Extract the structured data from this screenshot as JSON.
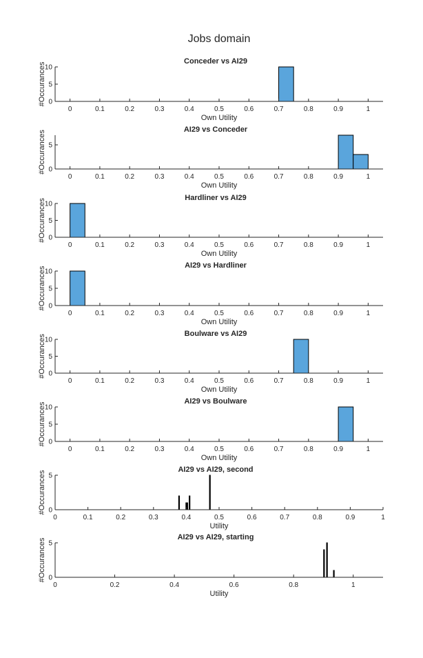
{
  "figure_title": "Jobs domain",
  "chart_data": [
    {
      "type": "bar",
      "title": "Conceder vs AI29",
      "xlabel": "Own Utility",
      "ylabel": "#Occurances",
      "xlim": [
        -0.05,
        1.05
      ],
      "ylim": [
        0,
        10
      ],
      "xticks": [
        0,
        0.1,
        0.2,
        0.3,
        0.4,
        0.5,
        0.6,
        0.7,
        0.8,
        0.9,
        1
      ],
      "xtick_labels": [
        "0",
        "0.1",
        "0.2",
        "0.3",
        "0.4",
        "0.5",
        "0.6",
        "0.7",
        "0.8",
        "0.9",
        "1"
      ],
      "yticks": [
        0,
        5,
        10
      ],
      "ytick_labels": [
        "0",
        "5",
        "10"
      ],
      "bar_style": "histogram",
      "bars": [
        {
          "start": 0.7,
          "end": 0.75,
          "count": 10
        }
      ]
    },
    {
      "type": "bar",
      "title": "AI29 vs Conceder",
      "xlabel": "Own Utility",
      "ylabel": "#Occurances",
      "xlim": [
        -0.05,
        1.05
      ],
      "ylim": [
        0,
        7
      ],
      "xticks": [
        0,
        0.1,
        0.2,
        0.3,
        0.4,
        0.5,
        0.6,
        0.7,
        0.8,
        0.9,
        1
      ],
      "xtick_labels": [
        "0",
        "0.1",
        "0.2",
        "0.3",
        "0.4",
        "0.5",
        "0.6",
        "0.7",
        "0.8",
        "0.9",
        "1"
      ],
      "yticks": [
        0,
        5
      ],
      "ytick_labels": [
        "0",
        "5"
      ],
      "bar_style": "histogram",
      "bars": [
        {
          "start": 0.9,
          "end": 0.95,
          "count": 7
        },
        {
          "start": 0.95,
          "end": 1.0,
          "count": 3
        }
      ]
    },
    {
      "type": "bar",
      "title": "Hardliner vs AI29",
      "xlabel": "Own Utility",
      "ylabel": "#Occurances",
      "xlim": [
        -0.05,
        1.05
      ],
      "ylim": [
        0,
        10
      ],
      "xticks": [
        0,
        0.1,
        0.2,
        0.3,
        0.4,
        0.5,
        0.6,
        0.7,
        0.8,
        0.9,
        1
      ],
      "xtick_labels": [
        "0",
        "0.1",
        "0.2",
        "0.3",
        "0.4",
        "0.5",
        "0.6",
        "0.7",
        "0.8",
        "0.9",
        "1"
      ],
      "yticks": [
        0,
        5,
        10
      ],
      "ytick_labels": [
        "0",
        "5",
        "10"
      ],
      "bar_style": "histogram",
      "bars": [
        {
          "start": 0.0,
          "end": 0.05,
          "count": 10
        }
      ]
    },
    {
      "type": "bar",
      "title": "AI29 vs Hardliner",
      "xlabel": "Own Utility",
      "ylabel": "#Occurances",
      "xlim": [
        -0.05,
        1.05
      ],
      "ylim": [
        0,
        10
      ],
      "xticks": [
        0,
        0.1,
        0.2,
        0.3,
        0.4,
        0.5,
        0.6,
        0.7,
        0.8,
        0.9,
        1
      ],
      "xtick_labels": [
        "0",
        "0.1",
        "0.2",
        "0.3",
        "0.4",
        "0.5",
        "0.6",
        "0.7",
        "0.8",
        "0.9",
        "1"
      ],
      "yticks": [
        0,
        5,
        10
      ],
      "ytick_labels": [
        "0",
        "5",
        "10"
      ],
      "bar_style": "histogram",
      "bars": [
        {
          "start": 0.0,
          "end": 0.05,
          "count": 10
        }
      ]
    },
    {
      "type": "bar",
      "title": "Boulware vs AI29",
      "xlabel": "Own Utility",
      "ylabel": "#Occurances",
      "xlim": [
        -0.05,
        1.05
      ],
      "ylim": [
        0,
        10
      ],
      "xticks": [
        0,
        0.1,
        0.2,
        0.3,
        0.4,
        0.5,
        0.6,
        0.7,
        0.8,
        0.9,
        1
      ],
      "xtick_labels": [
        "0",
        "0.1",
        "0.2",
        "0.3",
        "0.4",
        "0.5",
        "0.6",
        "0.7",
        "0.8",
        "0.9",
        "1"
      ],
      "yticks": [
        0,
        5,
        10
      ],
      "ytick_labels": [
        "0",
        "5",
        "10"
      ],
      "bar_style": "histogram",
      "bars": [
        {
          "start": 0.75,
          "end": 0.8,
          "count": 10
        }
      ]
    },
    {
      "type": "bar",
      "title": "AI29 vs Boulware",
      "xlabel": "Own Utility",
      "ylabel": "#Occurances",
      "xlim": [
        -0.05,
        1.05
      ],
      "ylim": [
        0,
        10
      ],
      "xticks": [
        0,
        0.1,
        0.2,
        0.3,
        0.4,
        0.5,
        0.6,
        0.7,
        0.8,
        0.9,
        1
      ],
      "xtick_labels": [
        "0",
        "0.1",
        "0.2",
        "0.3",
        "0.4",
        "0.5",
        "0.6",
        "0.7",
        "0.8",
        "0.9",
        "1"
      ],
      "yticks": [
        0,
        5,
        10
      ],
      "ytick_labels": [
        "0",
        "5",
        "10"
      ],
      "bar_style": "histogram",
      "bars": [
        {
          "start": 0.9,
          "end": 0.95,
          "count": 10
        }
      ]
    },
    {
      "type": "bar",
      "title": "AI29 vs AI29, second",
      "xlabel": "Utility",
      "ylabel": "#Occurances",
      "xlim": [
        0,
        1
      ],
      "ylim": [
        0,
        5
      ],
      "xticks": [
        0,
        0.1,
        0.2,
        0.3,
        0.4,
        0.5,
        0.6,
        0.7,
        0.8,
        0.9,
        1
      ],
      "xtick_labels": [
        "0",
        "0.1",
        "0.2",
        "0.3",
        "0.4",
        "0.5",
        "0.6",
        "0.7",
        "0.8",
        "0.9",
        "1"
      ],
      "yticks": [
        0,
        5
      ],
      "ytick_labels": [
        "0",
        "5"
      ],
      "bar_style": "spike",
      "bars": [
        {
          "x": 0.378,
          "count": 2
        },
        {
          "x": 0.4,
          "count": 1
        },
        {
          "x": 0.403,
          "count": 1
        },
        {
          "x": 0.41,
          "count": 2
        },
        {
          "x": 0.472,
          "count": 5
        }
      ]
    },
    {
      "type": "bar",
      "title": "AI29 vs AI29, starting",
      "xlabel": "Utility",
      "ylabel": "#Occurances",
      "xlim": [
        0,
        1.1
      ],
      "ylim": [
        0,
        5
      ],
      "xticks": [
        0,
        0.2,
        0.4,
        0.6,
        0.8,
        1
      ],
      "xtick_labels": [
        "0",
        "0.2",
        "0.4",
        "0.6",
        "0.8",
        "1"
      ],
      "yticks": [
        0,
        5
      ],
      "ytick_labels": [
        "0",
        "5"
      ],
      "bar_style": "spike",
      "bars": [
        {
          "x": 0.902,
          "count": 4
        },
        {
          "x": 0.912,
          "count": 5
        },
        {
          "x": 0.935,
          "count": 1
        }
      ]
    }
  ]
}
